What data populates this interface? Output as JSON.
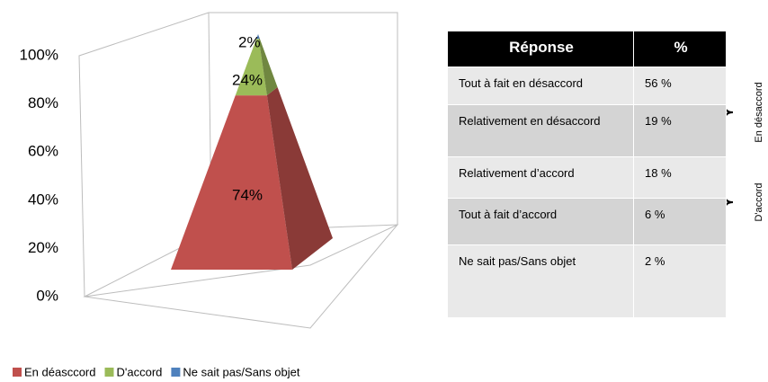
{
  "chart_data": {
    "type": "pyramid",
    "series": [
      {
        "name": "En déasccord",
        "color": "#c0504d",
        "values": [
          74
        ],
        "value_labels": [
          "74%"
        ]
      },
      {
        "name": "D'accord",
        "color": "#9bbb59",
        "values": [
          24
        ],
        "value_labels": [
          "24%"
        ]
      },
      {
        "name": "Ne sait pas/Sans objet",
        "color": "#4f81bd",
        "values": [
          2
        ],
        "value_labels": [
          "2%"
        ]
      }
    ],
    "ylim": [
      0,
      100
    ],
    "yticks": [
      {
        "value": 0,
        "label": "0%"
      },
      {
        "value": 20,
        "label": "20%"
      },
      {
        "value": 40,
        "label": "40%"
      },
      {
        "value": 60,
        "label": "60%"
      },
      {
        "value": 80,
        "label": "80%"
      },
      {
        "value": 100,
        "label": "100%"
      }
    ],
    "legend": "bottom"
  },
  "table": {
    "header": [
      "Réponse",
      "%"
    ],
    "rows": [
      [
        "Tout à fait en désaccord",
        "56 %"
      ],
      [
        "Relativement en désaccord",
        "19 %"
      ],
      [
        "Relativement d’accord",
        "18 %"
      ],
      [
        "Tout à fait d’accord",
        "6 %"
      ],
      [
        "Ne sait pas/Sans objet",
        "2 %"
      ]
    ]
  },
  "brackets": [
    "En désaccord",
    "D'accord"
  ]
}
